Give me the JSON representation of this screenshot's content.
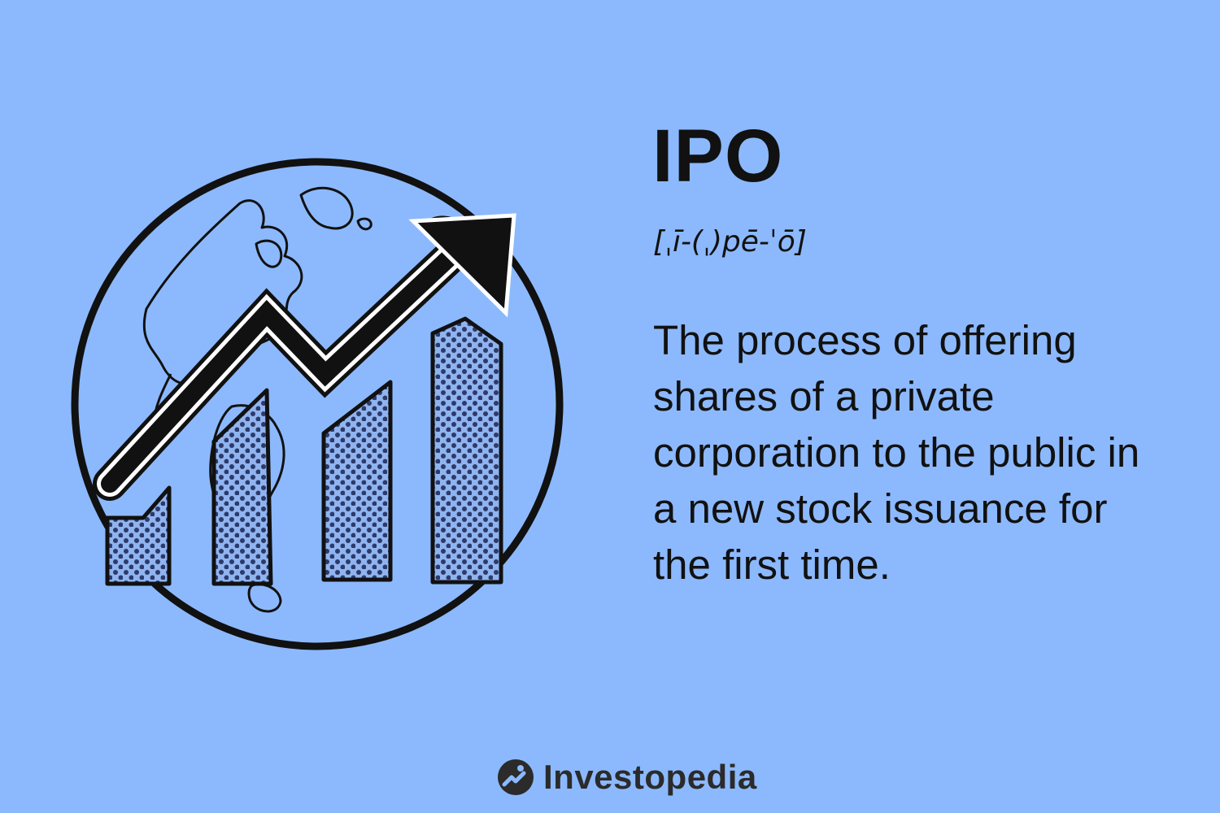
{
  "term": "IPO",
  "pronunciation": "[ˌī-(ˌ)pē-ˈō]",
  "definition": "The process of offering shares of a private corporation to the public in a new stock issuance for the first time.",
  "brand": {
    "name": "Investopedia",
    "logo_icon": "investopedia-logo-icon"
  },
  "illustration": {
    "icon": "globe-growth-chart-icon",
    "bar_fill_pattern": "dotted",
    "background_color": "#8cb9fd",
    "ink_color": "#111111"
  }
}
